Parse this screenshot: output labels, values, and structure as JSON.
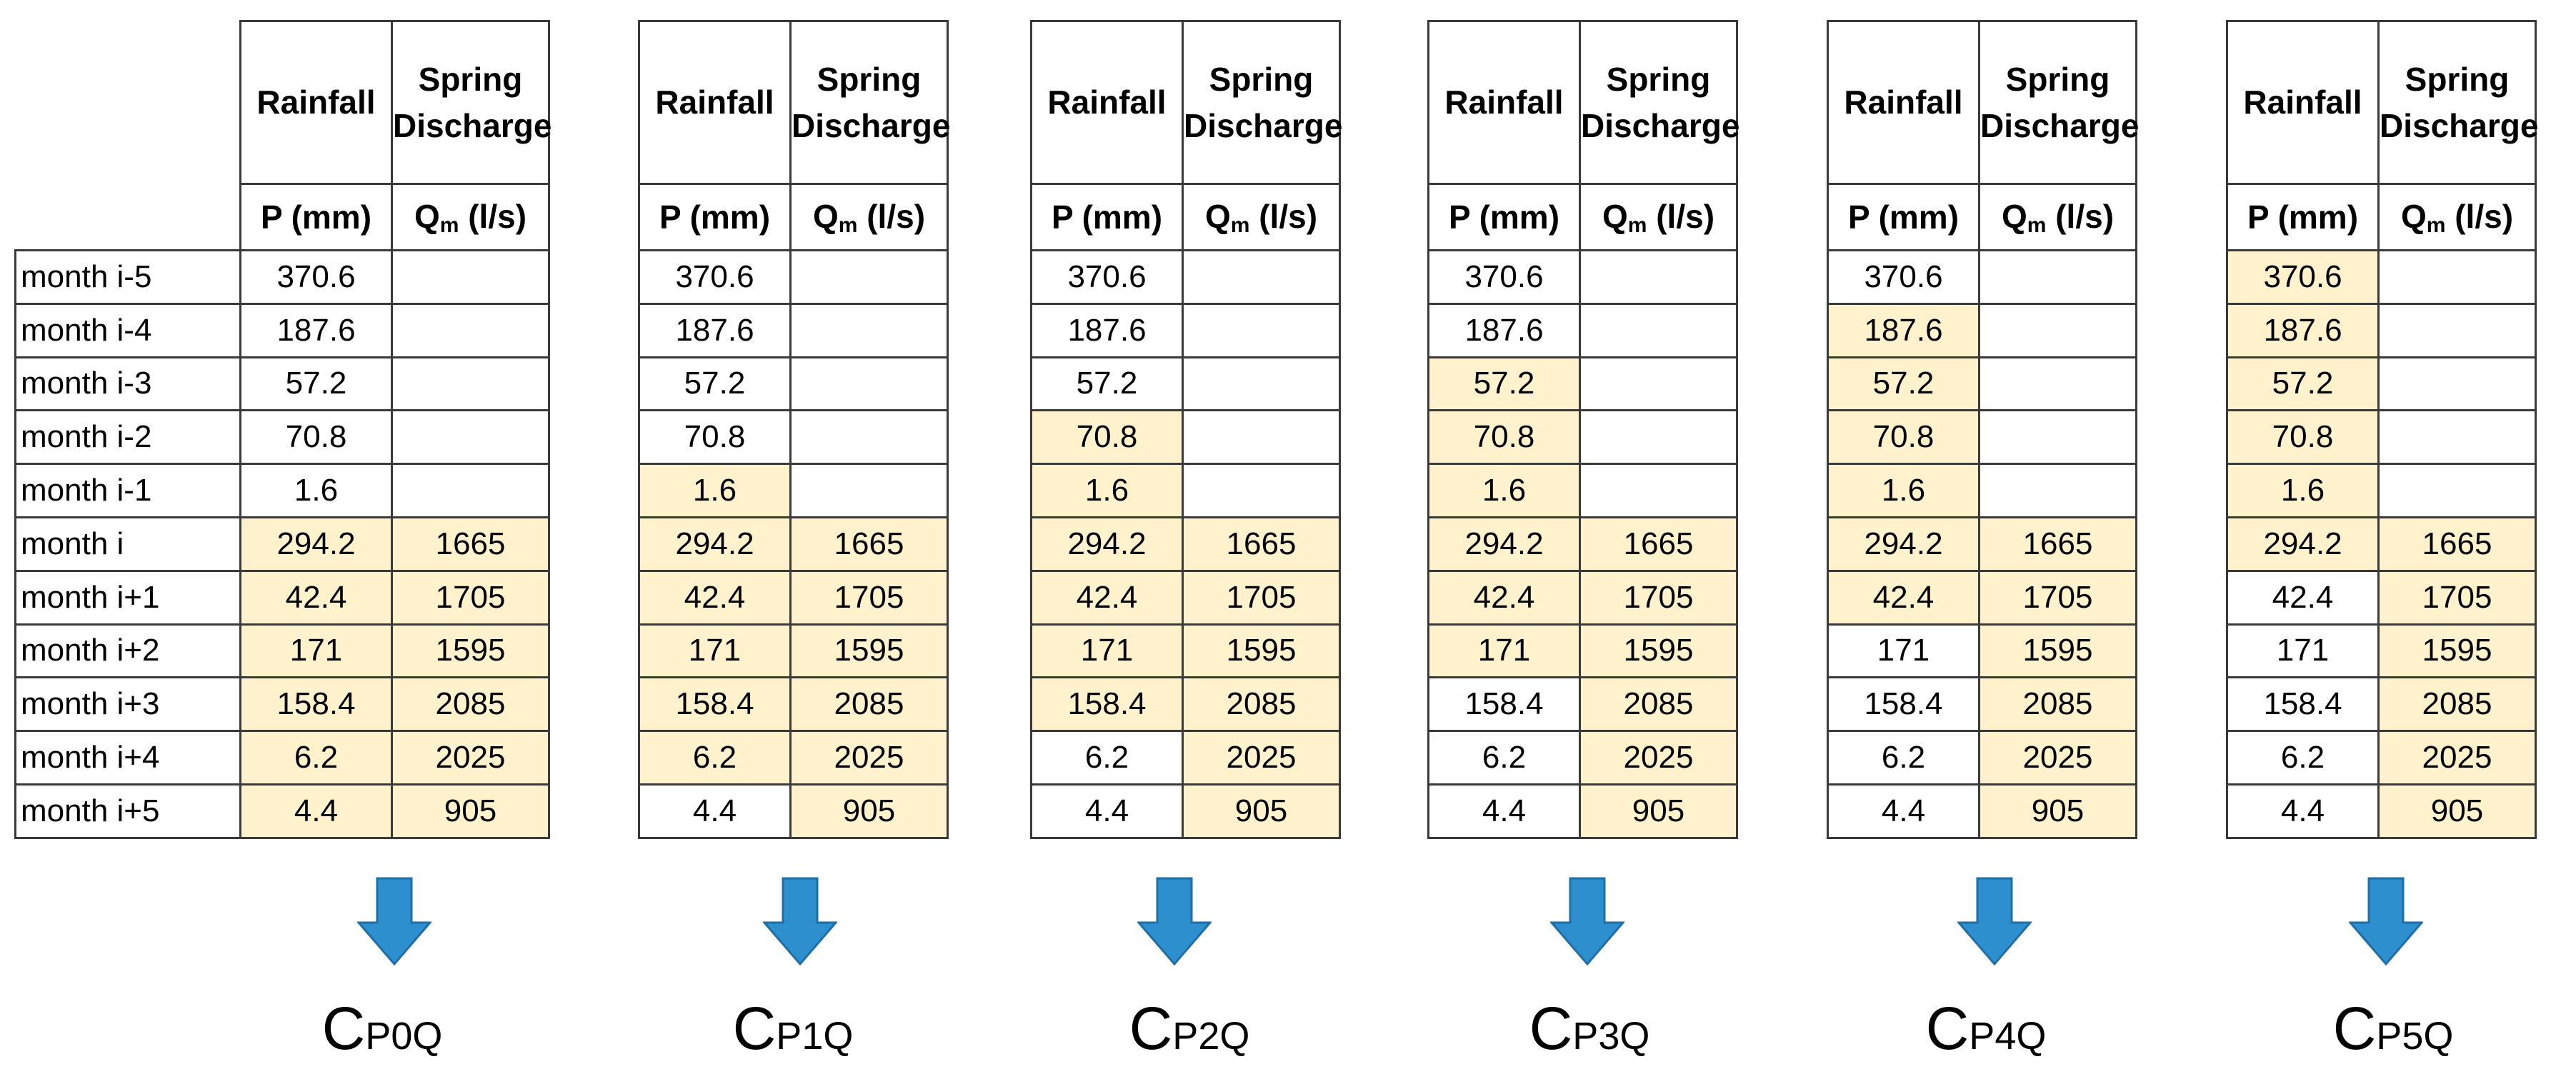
{
  "header": {
    "rainfall_title": "Rainfall",
    "discharge_title_line1": "Spring",
    "discharge_title_line2": "Discharge",
    "rainfall_unit": "P (mm)",
    "discharge_symbol": "Q",
    "discharge_subscript": "m",
    "discharge_unit": " (l/s)"
  },
  "row_labels": [
    "month i-5",
    "month i-4",
    "month i-3",
    "month i-2",
    "month i-1",
    "month i",
    "month i+1",
    "month i+2",
    "month i+3",
    "month i+4",
    "month i+5"
  ],
  "rainfall": [
    "370.6",
    "187.6",
    "57.2",
    "70.8",
    "1.6",
    "294.2",
    "42.4",
    "171",
    "158.4",
    "6.2",
    "4.4"
  ],
  "discharge": [
    "",
    "",
    "",
    "",
    "",
    "1665",
    "1705",
    "1595",
    "2085",
    "2025",
    "905"
  ],
  "highlight_color": "#fff2cc",
  "arrow_color": "#2e8fcf",
  "scenarios": [
    {
      "label_main": "C",
      "label_sub": "P0Q",
      "lag": 0
    },
    {
      "label_main": "C",
      "label_sub": "P1Q",
      "lag": 1
    },
    {
      "label_main": "C",
      "label_sub": "P2Q",
      "lag": 2
    },
    {
      "label_main": "C",
      "label_sub": "P3Q",
      "lag": 3
    },
    {
      "label_main": "C",
      "label_sub": "P4Q",
      "lag": 4
    },
    {
      "label_main": "C",
      "label_sub": "P5Q",
      "lag": 5
    }
  ]
}
